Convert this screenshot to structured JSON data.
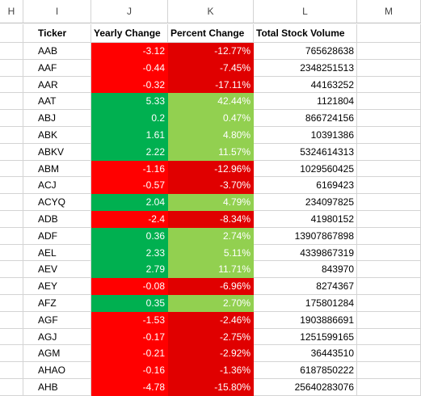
{
  "column_headers": [
    "H",
    "I",
    "J",
    "K",
    "L",
    "M"
  ],
  "table": {
    "headers": {
      "ticker": "Ticker",
      "yearly_change": "Yearly Change",
      "percent_change": "Percent Change",
      "total_volume": "Total Stock Volume"
    },
    "rows": [
      {
        "ticker": "AAB",
        "yearly_change": "-3.12",
        "percent_change": "-12.77%",
        "volume": "765628638",
        "sign": "neg"
      },
      {
        "ticker": "AAF",
        "yearly_change": "-0.44",
        "percent_change": "-7.45%",
        "volume": "2348251513",
        "sign": "neg"
      },
      {
        "ticker": "AAR",
        "yearly_change": "-0.32",
        "percent_change": "-17.11%",
        "volume": "44163252",
        "sign": "neg"
      },
      {
        "ticker": "AAT",
        "yearly_change": "5.33",
        "percent_change": "42.44%",
        "volume": "1121804",
        "sign": "pos"
      },
      {
        "ticker": "ABJ",
        "yearly_change": "0.2",
        "percent_change": "0.47%",
        "volume": "866724156",
        "sign": "pos"
      },
      {
        "ticker": "ABK",
        "yearly_change": "1.61",
        "percent_change": "4.80%",
        "volume": "10391386",
        "sign": "pos"
      },
      {
        "ticker": "ABKV",
        "yearly_change": "2.22",
        "percent_change": "11.57%",
        "volume": "5324614313",
        "sign": "pos"
      },
      {
        "ticker": "ABM",
        "yearly_change": "-1.16",
        "percent_change": "-12.96%",
        "volume": "1029560425",
        "sign": "neg"
      },
      {
        "ticker": "ACJ",
        "yearly_change": "-0.57",
        "percent_change": "-3.70%",
        "volume": "6169423",
        "sign": "neg"
      },
      {
        "ticker": "ACYQ",
        "yearly_change": "2.04",
        "percent_change": "4.79%",
        "volume": "234097825",
        "sign": "pos"
      },
      {
        "ticker": "ADB",
        "yearly_change": "-2.4",
        "percent_change": "-8.34%",
        "volume": "41980152",
        "sign": "neg"
      },
      {
        "ticker": "ADF",
        "yearly_change": "0.36",
        "percent_change": "2.74%",
        "volume": "13907867898",
        "sign": "pos"
      },
      {
        "ticker": "AEL",
        "yearly_change": "2.33",
        "percent_change": "5.11%",
        "volume": "4339867319",
        "sign": "pos"
      },
      {
        "ticker": "AEV",
        "yearly_change": "2.79",
        "percent_change": "11.71%",
        "volume": "843970",
        "sign": "pos"
      },
      {
        "ticker": "AEY",
        "yearly_change": "-0.08",
        "percent_change": "-6.96%",
        "volume": "8274367",
        "sign": "neg"
      },
      {
        "ticker": "AFZ",
        "yearly_change": "0.35",
        "percent_change": "2.70%",
        "volume": "175801284",
        "sign": "pos"
      },
      {
        "ticker": "AGF",
        "yearly_change": "-1.53",
        "percent_change": "-2.46%",
        "volume": "1903886691",
        "sign": "neg"
      },
      {
        "ticker": "AGJ",
        "yearly_change": "-0.17",
        "percent_change": "-2.75%",
        "volume": "1251599165",
        "sign": "neg"
      },
      {
        "ticker": "AGM",
        "yearly_change": "-0.21",
        "percent_change": "-2.92%",
        "volume": "36443510",
        "sign": "neg"
      },
      {
        "ticker": "AHAO",
        "yearly_change": "-0.16",
        "percent_change": "-1.36%",
        "volume": "6187850222",
        "sign": "neg"
      },
      {
        "ticker": "AHB",
        "yearly_change": "-4.78",
        "percent_change": "-15.80%",
        "volume": "25640283076",
        "sign": "neg"
      }
    ]
  },
  "colors": {
    "negative": "#ff0000",
    "positive": "#00b050",
    "negative_percent": "#e00000",
    "positive_percent": "#92d050"
  }
}
